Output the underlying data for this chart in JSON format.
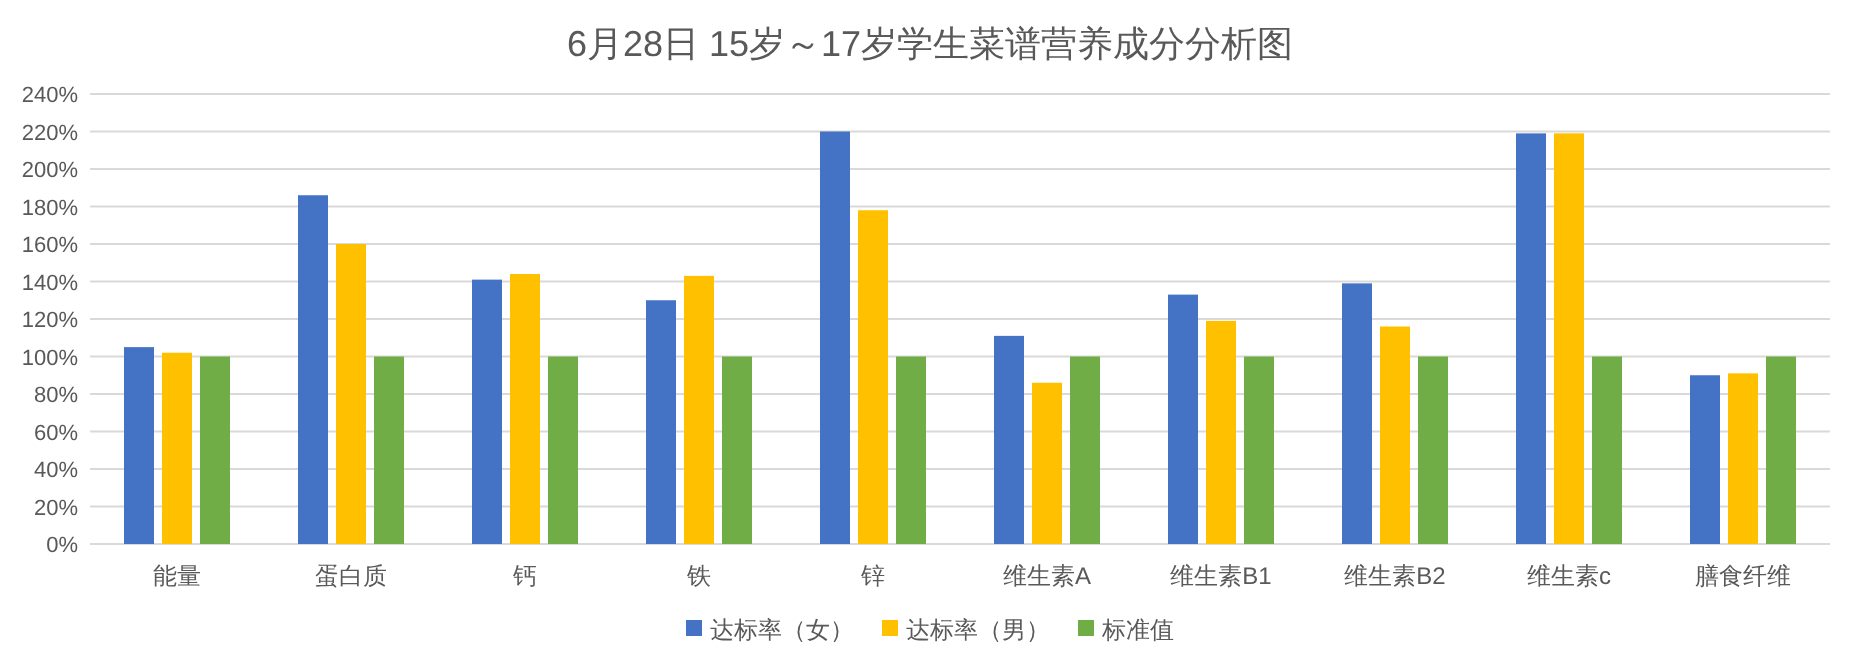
{
  "chart_data": {
    "type": "bar",
    "title": "6月28日 15岁～17岁学生菜谱营养成分分析图",
    "categories": [
      "能量",
      "蛋白质",
      "钙",
      "铁",
      "锌",
      "维生素A",
      "维生素B1",
      "维生素B2",
      "维生素c",
      "膳食纤维"
    ],
    "series": [
      {
        "name": "达标率（女）",
        "color": "#4472c4",
        "values": [
          105,
          186,
          141,
          130,
          220,
          111,
          133,
          139,
          219,
          90
        ]
      },
      {
        "name": "达标率（男）",
        "color": "#ffc000",
        "values": [
          102,
          160,
          144,
          143,
          178,
          86,
          119,
          116,
          219,
          91
        ]
      },
      {
        "name": "标准值",
        "color": "#70ad47",
        "values": [
          100,
          100,
          100,
          100,
          100,
          100,
          100,
          100,
          100,
          100
        ]
      }
    ],
    "ylim": [
      0,
      240
    ],
    "yticks": [
      {
        "value": 0,
        "label": "0%"
      },
      {
        "value": 20,
        "label": "20%"
      },
      {
        "value": 40,
        "label": "40%"
      },
      {
        "value": 60,
        "label": "60%"
      },
      {
        "value": 80,
        "label": "80%"
      },
      {
        "value": 100,
        "label": "100%"
      },
      {
        "value": 120,
        "label": "120%"
      },
      {
        "value": 140,
        "label": "140%"
      },
      {
        "value": 160,
        "label": "160%"
      },
      {
        "value": 180,
        "label": "180%"
      },
      {
        "value": 200,
        "label": "200%"
      },
      {
        "value": 220,
        "label": "220%"
      },
      {
        "value": 240,
        "label": "240%"
      }
    ],
    "grid": "y",
    "legend": "bottom"
  }
}
